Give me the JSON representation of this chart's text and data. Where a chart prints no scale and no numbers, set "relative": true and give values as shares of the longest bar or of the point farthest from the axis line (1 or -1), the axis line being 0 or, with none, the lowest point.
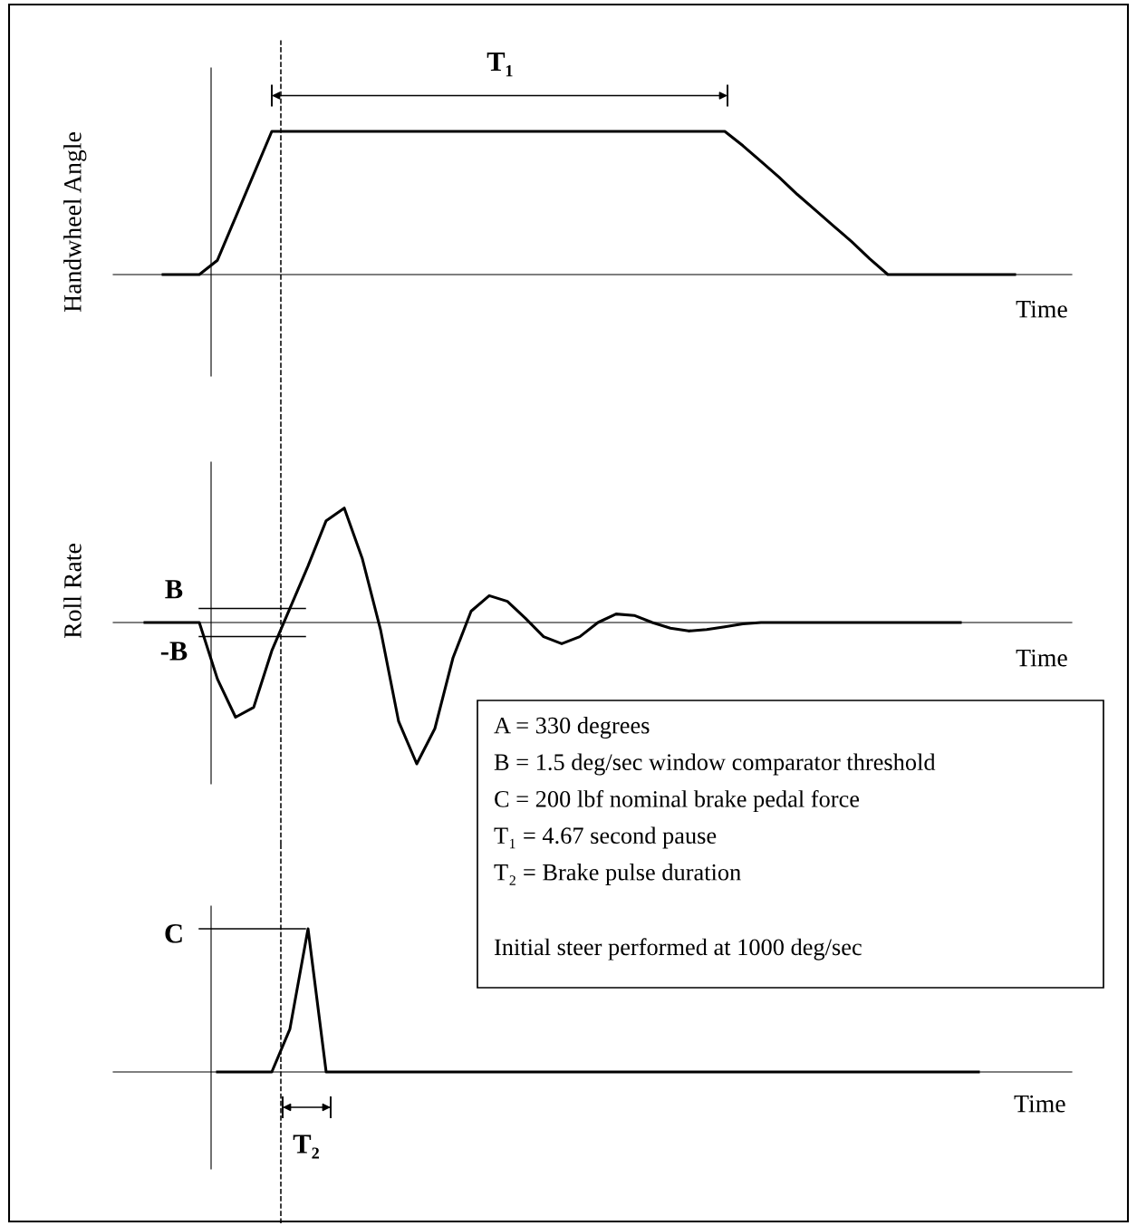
{
  "chart_data": [
    {
      "type": "line",
      "ylabel": "Handwheel Angle",
      "xlabel": "Time",
      "relative": true,
      "categories": [
        null,
        null,
        null,
        null,
        null,
        null,
        null,
        null,
        null,
        null,
        null,
        null,
        null,
        null,
        null,
        null,
        null,
        null,
        null,
        null,
        null,
        null,
        null,
        null,
        null,
        null,
        null,
        null,
        null,
        null,
        null,
        null,
        null,
        null,
        null,
        null,
        null,
        null,
        null,
        null,
        null,
        null,
        null,
        null,
        null,
        null,
        null,
        null,
        null,
        null
      ],
      "series": [
        {
          "color": "#000000",
          "values": [
            null,
            0,
            0,
            0,
            0.1,
            0.4,
            0.7,
            1,
            1,
            1,
            1,
            1,
            1,
            1,
            1,
            1,
            1,
            1,
            1,
            1,
            1,
            1,
            1,
            1,
            1,
            1,
            1,
            1,
            1,
            1,
            1,
            1,
            1,
            0.9,
            0.79,
            0.68,
            0.56,
            0.45,
            0.34,
            0.23,
            0.11,
            0,
            0,
            0,
            0,
            0,
            0,
            0,
            0,
            null
          ]
        }
      ],
      "annotations": [
        "T₁"
      ]
    },
    {
      "type": "line",
      "ylabel": "Roll Rate",
      "xlabel": "Time",
      "relative": true,
      "categories": [
        null,
        null,
        null,
        null,
        null,
        null,
        null,
        null,
        null,
        null,
        null,
        null,
        null,
        null,
        null,
        null,
        null,
        null,
        null,
        null,
        null,
        null,
        null,
        null,
        null,
        null,
        null,
        null,
        null,
        null,
        null,
        null,
        null,
        null,
        null,
        null,
        null,
        null,
        null,
        null,
        null,
        null,
        null,
        null,
        null,
        null,
        null,
        null,
        null,
        null
      ],
      "series": [
        {
          "color": "#000000",
          "values": [
            0,
            0,
            0,
            0,
            -0.4,
            -0.67,
            -0.6,
            -0.2,
            0.1,
            0.4,
            0.72,
            0.81,
            0.45,
            -0.05,
            -0.7,
            -1,
            -0.75,
            -0.25,
            0.08,
            0.19,
            0.15,
            0.03,
            -0.1,
            -0.15,
            -0.1,
            0,
            0.06,
            0.05,
            0,
            -0.04,
            -0.06,
            -0.05,
            -0.03,
            -0.01,
            0,
            0,
            0,
            0,
            0,
            0,
            0,
            0,
            0,
            0,
            0,
            0,
            null,
            null,
            null,
            null
          ]
        }
      ],
      "ref_lines": [
        {
          "axis": "y",
          "value": 0.1,
          "label": "B",
          "color": "#000000"
        },
        {
          "axis": "y",
          "value": -0.1,
          "label": "-B",
          "color": "#000000"
        }
      ]
    },
    {
      "type": "line",
      "xlabel": "Time",
      "relative": true,
      "categories": [
        null,
        null,
        null,
        null,
        null,
        null,
        null,
        null,
        null,
        null,
        null,
        null,
        null,
        null,
        null,
        null,
        null,
        null,
        null,
        null,
        null,
        null,
        null,
        null,
        null,
        null,
        null,
        null,
        null,
        null,
        null,
        null,
        null,
        null,
        null,
        null,
        null,
        null,
        null,
        null,
        null,
        null,
        null,
        null,
        null,
        null,
        null,
        null,
        null,
        null
      ],
      "series": [
        {
          "color": "#000000",
          "values": [
            null,
            null,
            null,
            null,
            0,
            0,
            0,
            0,
            0.3,
            1,
            0,
            0,
            0,
            0,
            0,
            0,
            0,
            0,
            0,
            0,
            0,
            0,
            0,
            0,
            0,
            0,
            0,
            0,
            0,
            0,
            0,
            0,
            0,
            0,
            0,
            0,
            0,
            0,
            0,
            0,
            0,
            0,
            0,
            0,
            0,
            0,
            0,
            null,
            null,
            null
          ]
        }
      ],
      "ref_lines": [
        {
          "axis": "y",
          "value": 1,
          "label": "C",
          "color": "#000000"
        }
      ],
      "annotations": [
        "T₂"
      ]
    },
    {
      "type": "other",
      "annotations": [
        "A = 330 degrees",
        "B = 1.5 deg/sec window comparator threshold",
        "C = 200 lbf nominal brake pedal force",
        "T₁ = 4.67 second pause",
        "T₂ = Brake pulse duration",
        "Initial steer performed at 1000 deg/sec"
      ]
    }
  ]
}
